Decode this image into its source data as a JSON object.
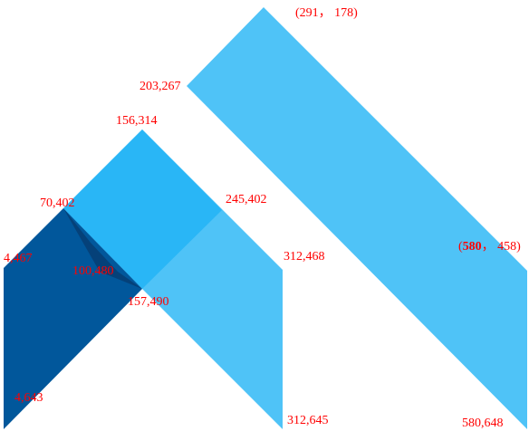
{
  "colors": {
    "light_blue": "#4fc3f7",
    "mid_blue": "#29b6f6",
    "dark_blue": "#01579b",
    "label_red": "#ff0000"
  },
  "labels": {
    "top_right_corner": "(291， 178)",
    "big_stripe_left": "203,267",
    "small_peak": "156,314",
    "left_peak": "70,402",
    "mid_right": "245,402",
    "left_outer": "4,467",
    "inner_notch": "100,480",
    "small_right_top": "312,468",
    "mid_bottom": "157,490",
    "big_stripe_right_prefix": "(",
    "big_stripe_right_bold": "580",
    "big_stripe_right_suffix": "， 458)",
    "left_bottom": "4,643",
    "small_right_bottom": "312,645",
    "big_bottom_right": "580,648"
  }
}
